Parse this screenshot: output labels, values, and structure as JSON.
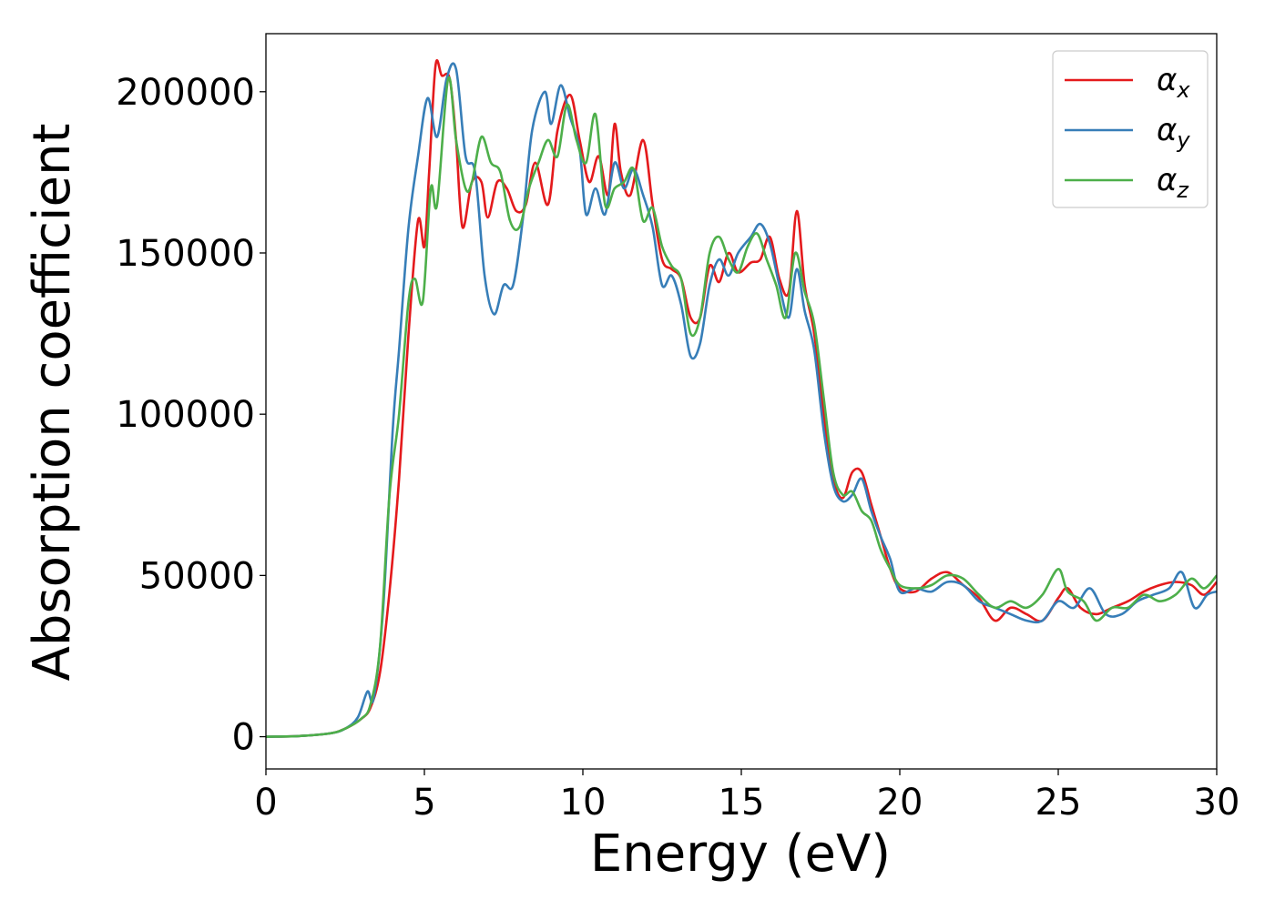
{
  "chart_data": {
    "type": "line",
    "title": "",
    "xlabel": "Energy (eV)",
    "ylabel": "Absorption coefficient",
    "xlim": [
      0,
      30
    ],
    "ylim": [
      -10000,
      218000
    ],
    "xticks": [
      "0",
      "5",
      "10",
      "15",
      "20",
      "25",
      "30"
    ],
    "yticks": [
      "0",
      "50000",
      "100000",
      "150000",
      "200000"
    ],
    "grid": false,
    "legend_position": "top-right",
    "series": [
      {
        "name": "αx",
        "symbol": "α",
        "subscript": "x",
        "color": "#e41a1c",
        "points": [
          [
            0,
            0
          ],
          [
            1,
            200
          ],
          [
            2,
            1000
          ],
          [
            2.5,
            2500
          ],
          [
            3,
            5500
          ],
          [
            3.3,
            9000
          ],
          [
            3.6,
            20000
          ],
          [
            3.9,
            45000
          ],
          [
            4.2,
            80000
          ],
          [
            4.5,
            125000
          ],
          [
            4.8,
            160000
          ],
          [
            5.0,
            152000
          ],
          [
            5.15,
            175000
          ],
          [
            5.35,
            208000
          ],
          [
            5.55,
            205000
          ],
          [
            5.8,
            204000
          ],
          [
            6.0,
            185000
          ],
          [
            6.2,
            158000
          ],
          [
            6.5,
            172000
          ],
          [
            6.8,
            172000
          ],
          [
            7.0,
            161000
          ],
          [
            7.3,
            172000
          ],
          [
            7.6,
            170000
          ],
          [
            7.9,
            163000
          ],
          [
            8.2,
            165000
          ],
          [
            8.5,
            178000
          ],
          [
            8.9,
            165000
          ],
          [
            9.2,
            188000
          ],
          [
            9.6,
            199000
          ],
          [
            9.9,
            185000
          ],
          [
            10.2,
            172000
          ],
          [
            10.5,
            180000
          ],
          [
            10.8,
            168000
          ],
          [
            11.0,
            190000
          ],
          [
            11.2,
            175000
          ],
          [
            11.5,
            168000
          ],
          [
            11.9,
            185000
          ],
          [
            12.2,
            165000
          ],
          [
            12.5,
            148000
          ],
          [
            12.8,
            145000
          ],
          [
            13.1,
            142000
          ],
          [
            13.4,
            130000
          ],
          [
            13.7,
            130000
          ],
          [
            14.0,
            146000
          ],
          [
            14.3,
            141000
          ],
          [
            14.6,
            150000
          ],
          [
            14.9,
            144000
          ],
          [
            15.3,
            147000
          ],
          [
            15.6,
            148000
          ],
          [
            15.9,
            155000
          ],
          [
            16.2,
            142000
          ],
          [
            16.5,
            138000
          ],
          [
            16.75,
            163000
          ],
          [
            17.0,
            140000
          ],
          [
            17.3,
            125000
          ],
          [
            17.6,
            100000
          ],
          [
            17.9,
            80000
          ],
          [
            18.2,
            74000
          ],
          [
            18.5,
            82000
          ],
          [
            18.8,
            82000
          ],
          [
            19.1,
            72000
          ],
          [
            19.4,
            62000
          ],
          [
            19.7,
            52000
          ],
          [
            20.0,
            46000
          ],
          [
            20.5,
            45000
          ],
          [
            21.0,
            49000
          ],
          [
            21.5,
            51000
          ],
          [
            22.0,
            47000
          ],
          [
            22.5,
            43000
          ],
          [
            23.0,
            36000
          ],
          [
            23.5,
            40000
          ],
          [
            24.0,
            38000
          ],
          [
            24.5,
            36000
          ],
          [
            25.0,
            43000
          ],
          [
            25.3,
            46000
          ],
          [
            25.7,
            40000
          ],
          [
            26.2,
            38000
          ],
          [
            26.7,
            40000
          ],
          [
            27.2,
            42000
          ],
          [
            27.7,
            45000
          ],
          [
            28.2,
            47000
          ],
          [
            28.7,
            48000
          ],
          [
            29.2,
            47000
          ],
          [
            29.6,
            44000
          ],
          [
            30.0,
            48000
          ]
        ]
      },
      {
        "name": "αy",
        "symbol": "α",
        "subscript": "y",
        "color": "#377eb8",
        "points": [
          [
            0,
            0
          ],
          [
            1,
            200
          ],
          [
            2,
            1000
          ],
          [
            2.5,
            2500
          ],
          [
            2.9,
            6000
          ],
          [
            3.2,
            14000
          ],
          [
            3.4,
            12000
          ],
          [
            3.7,
            40000
          ],
          [
            4.0,
            95000
          ],
          [
            4.2,
            120000
          ],
          [
            4.5,
            158000
          ],
          [
            4.8,
            180000
          ],
          [
            5.1,
            198000
          ],
          [
            5.4,
            186000
          ],
          [
            5.7,
            204000
          ],
          [
            6.0,
            207000
          ],
          [
            6.3,
            180000
          ],
          [
            6.6,
            175000
          ],
          [
            6.9,
            143000
          ],
          [
            7.2,
            131000
          ],
          [
            7.5,
            140000
          ],
          [
            7.8,
            140000
          ],
          [
            8.1,
            160000
          ],
          [
            8.4,
            188000
          ],
          [
            8.8,
            200000
          ],
          [
            9.0,
            190000
          ],
          [
            9.3,
            202000
          ],
          [
            9.6,
            192000
          ],
          [
            9.9,
            182000
          ],
          [
            10.1,
            162000
          ],
          [
            10.4,
            170000
          ],
          [
            10.7,
            162000
          ],
          [
            11.0,
            178000
          ],
          [
            11.3,
            170000
          ],
          [
            11.6,
            176000
          ],
          [
            11.9,
            168000
          ],
          [
            12.2,
            158000
          ],
          [
            12.5,
            140000
          ],
          [
            12.8,
            143000
          ],
          [
            13.1,
            134000
          ],
          [
            13.4,
            118000
          ],
          [
            13.7,
            122000
          ],
          [
            14.0,
            140000
          ],
          [
            14.3,
            148000
          ],
          [
            14.6,
            143000
          ],
          [
            14.9,
            150000
          ],
          [
            15.3,
            155000
          ],
          [
            15.6,
            159000
          ],
          [
            15.9,
            153000
          ],
          [
            16.2,
            140000
          ],
          [
            16.5,
            130000
          ],
          [
            16.75,
            145000
          ],
          [
            17.0,
            132000
          ],
          [
            17.3,
            120000
          ],
          [
            17.6,
            95000
          ],
          [
            17.9,
            78000
          ],
          [
            18.2,
            73000
          ],
          [
            18.5,
            75000
          ],
          [
            18.8,
            80000
          ],
          [
            19.1,
            70000
          ],
          [
            19.4,
            62000
          ],
          [
            19.7,
            55000
          ],
          [
            20.0,
            45000
          ],
          [
            20.5,
            46000
          ],
          [
            21.0,
            45000
          ],
          [
            21.5,
            48000
          ],
          [
            22.0,
            47000
          ],
          [
            22.5,
            42000
          ],
          [
            23.0,
            40000
          ],
          [
            23.5,
            38000
          ],
          [
            24.0,
            36000
          ],
          [
            24.5,
            36000
          ],
          [
            25.0,
            42000
          ],
          [
            25.5,
            40000
          ],
          [
            26.0,
            46000
          ],
          [
            26.5,
            38000
          ],
          [
            27.0,
            38000
          ],
          [
            27.5,
            42000
          ],
          [
            28.0,
            44000
          ],
          [
            28.5,
            46000
          ],
          [
            28.9,
            51000
          ],
          [
            29.3,
            40000
          ],
          [
            29.7,
            44000
          ],
          [
            30.0,
            45000
          ]
        ]
      },
      {
        "name": "αz",
        "symbol": "α",
        "subscript": "z",
        "color": "#4daf4a",
        "points": [
          [
            0,
            0
          ],
          [
            1,
            200
          ],
          [
            2,
            1000
          ],
          [
            2.5,
            2500
          ],
          [
            3,
            5500
          ],
          [
            3.3,
            10000
          ],
          [
            3.6,
            28000
          ],
          [
            3.9,
            75000
          ],
          [
            4.2,
            100000
          ],
          [
            4.5,
            135000
          ],
          [
            4.7,
            142000
          ],
          [
            4.95,
            135000
          ],
          [
            5.2,
            170000
          ],
          [
            5.4,
            165000
          ],
          [
            5.75,
            204000
          ],
          [
            6.0,
            185000
          ],
          [
            6.3,
            170000
          ],
          [
            6.5,
            172000
          ],
          [
            6.8,
            186000
          ],
          [
            7.1,
            178000
          ],
          [
            7.4,
            175000
          ],
          [
            7.7,
            160000
          ],
          [
            8.0,
            158000
          ],
          [
            8.3,
            170000
          ],
          [
            8.6,
            178000
          ],
          [
            8.9,
            185000
          ],
          [
            9.2,
            180000
          ],
          [
            9.5,
            196000
          ],
          [
            9.8,
            185000
          ],
          [
            10.1,
            178000
          ],
          [
            10.4,
            193000
          ],
          [
            10.7,
            165000
          ],
          [
            11.0,
            170000
          ],
          [
            11.3,
            172000
          ],
          [
            11.6,
            176000
          ],
          [
            11.9,
            160000
          ],
          [
            12.2,
            164000
          ],
          [
            12.5,
            152000
          ],
          [
            12.8,
            146000
          ],
          [
            13.1,
            142000
          ],
          [
            13.4,
            125000
          ],
          [
            13.7,
            130000
          ],
          [
            14.0,
            150000
          ],
          [
            14.3,
            155000
          ],
          [
            14.6,
            148000
          ],
          [
            14.9,
            144000
          ],
          [
            15.2,
            152000
          ],
          [
            15.5,
            156000
          ],
          [
            15.8,
            148000
          ],
          [
            16.1,
            140000
          ],
          [
            16.4,
            130000
          ],
          [
            16.7,
            150000
          ],
          [
            17.0,
            138000
          ],
          [
            17.3,
            128000
          ],
          [
            17.6,
            105000
          ],
          [
            17.9,
            82000
          ],
          [
            18.2,
            75000
          ],
          [
            18.5,
            76000
          ],
          [
            18.8,
            70000
          ],
          [
            19.1,
            67000
          ],
          [
            19.4,
            58000
          ],
          [
            19.7,
            52000
          ],
          [
            20.0,
            47000
          ],
          [
            20.5,
            46000
          ],
          [
            21.0,
            47000
          ],
          [
            21.5,
            50000
          ],
          [
            22.0,
            49000
          ],
          [
            22.5,
            44000
          ],
          [
            23.0,
            40000
          ],
          [
            23.5,
            42000
          ],
          [
            24.0,
            40000
          ],
          [
            24.5,
            44000
          ],
          [
            25.0,
            52000
          ],
          [
            25.3,
            45000
          ],
          [
            25.8,
            42000
          ],
          [
            26.2,
            36000
          ],
          [
            26.7,
            40000
          ],
          [
            27.2,
            40000
          ],
          [
            27.7,
            44000
          ],
          [
            28.2,
            42000
          ],
          [
            28.7,
            44000
          ],
          [
            29.2,
            49000
          ],
          [
            29.6,
            46000
          ],
          [
            30.0,
            50000
          ]
        ]
      }
    ]
  }
}
